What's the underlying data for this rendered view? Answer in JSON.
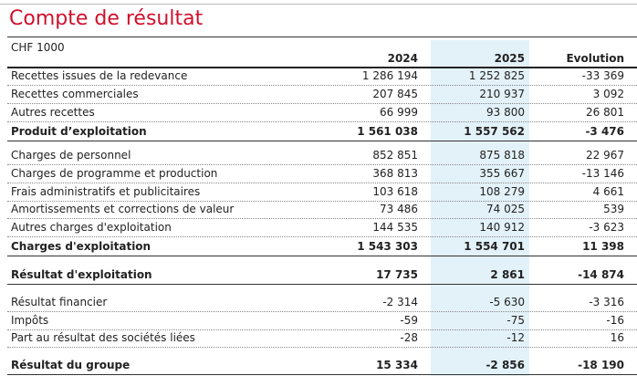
{
  "header": {
    "title": "Compte de résultat",
    "unit": "CHF 1000"
  },
  "table": {
    "columns": [
      "2024",
      "2025",
      "Evolution"
    ],
    "rows": [
      {
        "cells": [
          "Recettes issues de la redevance",
          "1 286 194",
          "1 252 825",
          "-33 369"
        ],
        "total": false
      },
      {
        "cells": [
          "Recettes commerciales",
          "207 845",
          "210 937",
          "3 092"
        ],
        "total": false
      },
      {
        "cells": [
          "Autres recettes",
          "66 999",
          "93 800",
          "26 801"
        ],
        "total": false
      },
      {
        "cells": [
          "Produit d’exploitation",
          "1 561 038",
          "1 557 562",
          "-3 476"
        ],
        "total": true
      },
      {
        "cells": [
          "Charges de personnel",
          "852 851",
          "875 818",
          "22 967"
        ],
        "total": false
      },
      {
        "cells": [
          "Charges de programme et production",
          "368 813",
          "355 667",
          "-13 146"
        ],
        "total": false
      },
      {
        "cells": [
          "Frais administratifs et publicitaires",
          "103 618",
          "108 279",
          "4 661"
        ],
        "total": false
      },
      {
        "cells": [
          "Amortissements et corrections de valeur",
          "73 486",
          "74 025",
          "539"
        ],
        "total": false
      },
      {
        "cells": [
          "Autres charges d'exploitation",
          "144 535",
          "140 912",
          "-3 623"
        ],
        "total": false
      },
      {
        "cells": [
          "Charges d'exploitation",
          "1 543 303",
          "1 554 701",
          "11 398"
        ],
        "total": true
      },
      {
        "cells": [
          "Résultat d'exploitation",
          "17 735",
          "2 861",
          "-14 874"
        ],
        "total": true
      },
      {
        "cells": [
          "Résultat financier",
          "-2 314",
          "-5 630",
          "-3 316"
        ],
        "total": false
      },
      {
        "cells": [
          "Impôts",
          "-59",
          "-75",
          "-16"
        ],
        "total": false
      },
      {
        "cells": [
          "Part au résultat des sociétés liées",
          "-28",
          "-12",
          "16"
        ],
        "total": false
      },
      {
        "cells": [
          "Résultat du groupe",
          "15 334",
          "-2 856",
          "-18 190"
        ],
        "total": true
      }
    ]
  }
}
